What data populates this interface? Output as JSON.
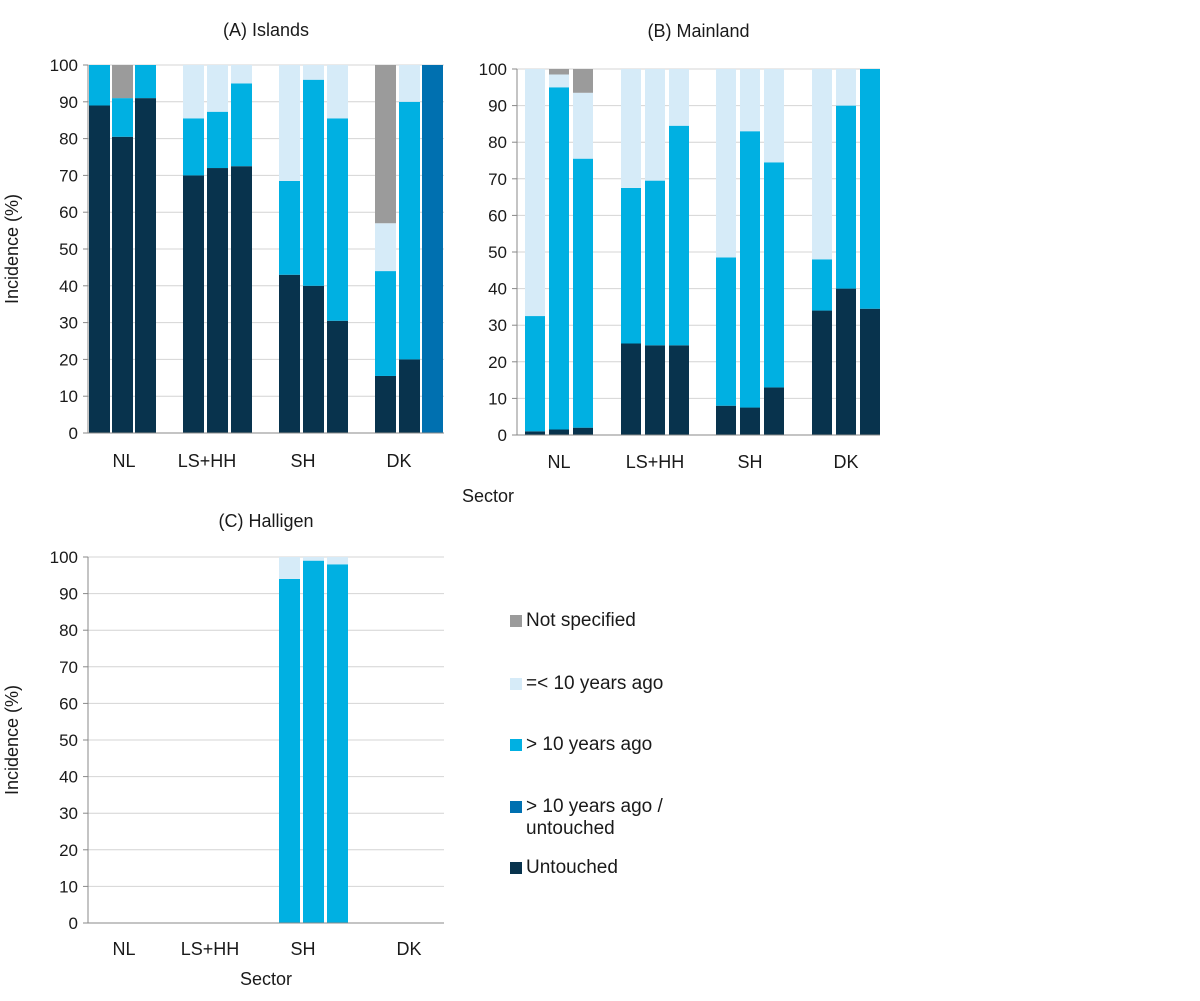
{
  "colors": {
    "not_specified": "#9b9b9b",
    "le10": "#d6ebf8",
    "gt10": "#00b0e2",
    "gt10_untouched": "#0070b0",
    "untouched": "#08334d",
    "grid": "#d4d4d4",
    "axis": "#888888"
  },
  "legend": {
    "items": [
      {
        "key": "not_specified",
        "label": "Not specified"
      },
      {
        "key": "le10",
        "label": "=< 10 years ago"
      },
      {
        "key": "gt10",
        "label": "> 10 years ago"
      },
      {
        "key": "gt10_untouched",
        "label": "> 10 years ago /\nuntouched"
      },
      {
        "key": "untouched",
        "label": "Untouched"
      }
    ]
  },
  "shared_xlabel": "Sector",
  "chart_data": [
    {
      "type": "bar",
      "stacked": true,
      "title": "(A) Islands",
      "ylabel": "Incidence (%)",
      "xlabel": "",
      "ylim": [
        0,
        100
      ],
      "yticks": [
        0,
        10,
        20,
        30,
        40,
        50,
        60,
        70,
        80,
        90,
        100
      ],
      "categories": [
        "NL",
        "LS+HH",
        "SH",
        "DK"
      ],
      "stack_order": [
        "untouched",
        "gt10_untouched",
        "gt10",
        "le10",
        "not_specified"
      ],
      "bars": [
        {
          "category": "NL",
          "untouched": 89,
          "gt10_untouched": 0,
          "gt10": 11,
          "le10": 0,
          "not_specified": 0
        },
        {
          "category": "NL",
          "untouched": 80.5,
          "gt10_untouched": 0,
          "gt10": 10.5,
          "le10": 0,
          "not_specified": 9
        },
        {
          "category": "NL",
          "untouched": 91,
          "gt10_untouched": 0,
          "gt10": 9,
          "le10": 0,
          "not_specified": 0
        },
        {
          "category": "LS+HH",
          "untouched": 70,
          "gt10_untouched": 0,
          "gt10": 15.5,
          "le10": 14.5,
          "not_specified": 0
        },
        {
          "category": "LS+HH",
          "untouched": 72,
          "gt10_untouched": 0,
          "gt10": 15.3,
          "le10": 12.7,
          "not_specified": 0
        },
        {
          "category": "LS+HH",
          "untouched": 72.5,
          "gt10_untouched": 0,
          "gt10": 22.5,
          "le10": 5,
          "not_specified": 0
        },
        {
          "category": "SH",
          "untouched": 43,
          "gt10_untouched": 0,
          "gt10": 25.5,
          "le10": 31.5,
          "not_specified": 0
        },
        {
          "category": "SH",
          "untouched": 40,
          "gt10_untouched": 0,
          "gt10": 56,
          "le10": 4,
          "not_specified": 0
        },
        {
          "category": "SH",
          "untouched": 30.5,
          "gt10_untouched": 0,
          "gt10": 55,
          "le10": 14.5,
          "not_specified": 0
        },
        {
          "category": "DK",
          "untouched": 15.5,
          "gt10_untouched": 0,
          "gt10": 28.5,
          "le10": 13,
          "not_specified": 43
        },
        {
          "category": "DK",
          "untouched": 20,
          "gt10_untouched": 0,
          "gt10": 70,
          "le10": 10,
          "not_specified": 0
        },
        {
          "category": "DK",
          "untouched": 0,
          "gt10_untouched": 100,
          "gt10": 0,
          "le10": 0,
          "not_specified": 0
        }
      ]
    },
    {
      "type": "bar",
      "stacked": true,
      "title": "(B) Mainland",
      "ylabel": "",
      "xlabel": "",
      "ylim": [
        0,
        100
      ],
      "yticks": [
        0,
        10,
        20,
        30,
        40,
        50,
        60,
        70,
        80,
        90,
        100
      ],
      "categories": [
        "NL",
        "LS+HH",
        "SH",
        "DK"
      ],
      "stack_order": [
        "untouched",
        "gt10_untouched",
        "gt10",
        "le10",
        "not_specified"
      ],
      "bars": [
        {
          "category": "NL",
          "untouched": 1,
          "gt10_untouched": 0,
          "gt10": 31.5,
          "le10": 67.5,
          "not_specified": 0
        },
        {
          "category": "NL",
          "untouched": 1.5,
          "gt10_untouched": 0,
          "gt10": 93.5,
          "le10": 3.5,
          "not_specified": 1.5
        },
        {
          "category": "NL",
          "untouched": 2,
          "gt10_untouched": 0,
          "gt10": 73.5,
          "le10": 18,
          "not_specified": 6.5
        },
        {
          "category": "LS+HH",
          "untouched": 25,
          "gt10_untouched": 0,
          "gt10": 42.5,
          "le10": 32.5,
          "not_specified": 0
        },
        {
          "category": "LS+HH",
          "untouched": 24.5,
          "gt10_untouched": 0,
          "gt10": 45,
          "le10": 30.5,
          "not_specified": 0
        },
        {
          "category": "LS+HH",
          "untouched": 24.5,
          "gt10_untouched": 0,
          "gt10": 60,
          "le10": 15.5,
          "not_specified": 0
        },
        {
          "category": "SH",
          "untouched": 8,
          "gt10_untouched": 0,
          "gt10": 40.5,
          "le10": 51.5,
          "not_specified": 0
        },
        {
          "category": "SH",
          "untouched": 7.5,
          "gt10_untouched": 0,
          "gt10": 75.5,
          "le10": 17,
          "not_specified": 0
        },
        {
          "category": "SH",
          "untouched": 13,
          "gt10_untouched": 0,
          "gt10": 61.5,
          "le10": 25.5,
          "not_specified": 0
        },
        {
          "category": "DK",
          "untouched": 34,
          "gt10_untouched": 0,
          "gt10": 14,
          "le10": 52,
          "not_specified": 0
        },
        {
          "category": "DK",
          "untouched": 40,
          "gt10_untouched": 0,
          "gt10": 50,
          "le10": 10,
          "not_specified": 0
        },
        {
          "category": "DK",
          "untouched": 34.5,
          "gt10_untouched": 0,
          "gt10": 65.5,
          "le10": 0,
          "not_specified": 0
        }
      ]
    },
    {
      "type": "bar",
      "stacked": true,
      "title": "(C) Halligen",
      "ylabel": "Incidence (%)",
      "xlabel": "Sector",
      "ylim": [
        0,
        100
      ],
      "yticks": [
        0,
        10,
        20,
        30,
        40,
        50,
        60,
        70,
        80,
        90,
        100
      ],
      "categories": [
        "NL",
        "LS+HH",
        "SH",
        "DK"
      ],
      "stack_order": [
        "untouched",
        "gt10_untouched",
        "gt10",
        "le10",
        "not_specified"
      ],
      "bars": [
        {
          "category": "SH",
          "untouched": 0,
          "gt10_untouched": 0,
          "gt10": 94,
          "le10": 6,
          "not_specified": 0
        },
        {
          "category": "SH",
          "untouched": 0,
          "gt10_untouched": 0,
          "gt10": 99,
          "le10": 1,
          "not_specified": 0
        },
        {
          "category": "SH",
          "untouched": 0,
          "gt10_untouched": 0,
          "gt10": 98,
          "le10": 2,
          "not_specified": 0
        }
      ]
    }
  ]
}
